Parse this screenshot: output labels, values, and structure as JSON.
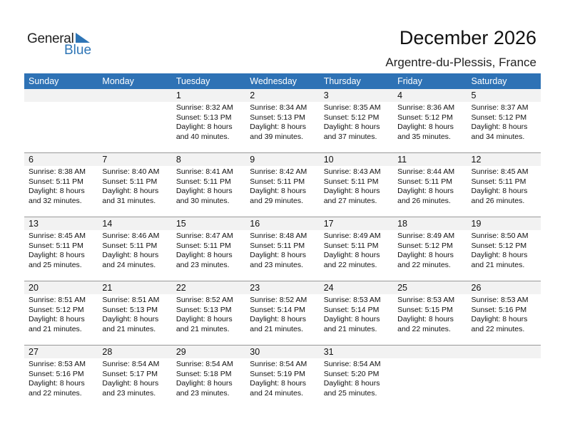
{
  "logo": {
    "word1": "General",
    "word2": "Blue"
  },
  "title": "December 2026",
  "location": "Argentre-du-Plessis, France",
  "colors": {
    "header": "#2e72b5",
    "brand": "#2e75b6",
    "date_bar": "#f2f2f2"
  },
  "weekdays": [
    "Sunday",
    "Monday",
    "Tuesday",
    "Wednesday",
    "Thursday",
    "Friday",
    "Saturday"
  ],
  "weeks": [
    [
      null,
      null,
      {
        "day": "1",
        "sunrise": "Sunrise: 8:32 AM",
        "sunset": "Sunset: 5:13 PM",
        "daylight": "Daylight: 8 hours",
        "minutes": "and 40 minutes."
      },
      {
        "day": "2",
        "sunrise": "Sunrise: 8:34 AM",
        "sunset": "Sunset: 5:13 PM",
        "daylight": "Daylight: 8 hours",
        "minutes": "and 39 minutes."
      },
      {
        "day": "3",
        "sunrise": "Sunrise: 8:35 AM",
        "sunset": "Sunset: 5:12 PM",
        "daylight": "Daylight: 8 hours",
        "minutes": "and 37 minutes."
      },
      {
        "day": "4",
        "sunrise": "Sunrise: 8:36 AM",
        "sunset": "Sunset: 5:12 PM",
        "daylight": "Daylight: 8 hours",
        "minutes": "and 35 minutes."
      },
      {
        "day": "5",
        "sunrise": "Sunrise: 8:37 AM",
        "sunset": "Sunset: 5:12 PM",
        "daylight": "Daylight: 8 hours",
        "minutes": "and 34 minutes."
      }
    ],
    [
      {
        "day": "6",
        "sunrise": "Sunrise: 8:38 AM",
        "sunset": "Sunset: 5:11 PM",
        "daylight": "Daylight: 8 hours",
        "minutes": "and 32 minutes."
      },
      {
        "day": "7",
        "sunrise": "Sunrise: 8:40 AM",
        "sunset": "Sunset: 5:11 PM",
        "daylight": "Daylight: 8 hours",
        "minutes": "and 31 minutes."
      },
      {
        "day": "8",
        "sunrise": "Sunrise: 8:41 AM",
        "sunset": "Sunset: 5:11 PM",
        "daylight": "Daylight: 8 hours",
        "minutes": "and 30 minutes."
      },
      {
        "day": "9",
        "sunrise": "Sunrise: 8:42 AM",
        "sunset": "Sunset: 5:11 PM",
        "daylight": "Daylight: 8 hours",
        "minutes": "and 29 minutes."
      },
      {
        "day": "10",
        "sunrise": "Sunrise: 8:43 AM",
        "sunset": "Sunset: 5:11 PM",
        "daylight": "Daylight: 8 hours",
        "minutes": "and 27 minutes."
      },
      {
        "day": "11",
        "sunrise": "Sunrise: 8:44 AM",
        "sunset": "Sunset: 5:11 PM",
        "daylight": "Daylight: 8 hours",
        "minutes": "and 26 minutes."
      },
      {
        "day": "12",
        "sunrise": "Sunrise: 8:45 AM",
        "sunset": "Sunset: 5:11 PM",
        "daylight": "Daylight: 8 hours",
        "minutes": "and 26 minutes."
      }
    ],
    [
      {
        "day": "13",
        "sunrise": "Sunrise: 8:45 AM",
        "sunset": "Sunset: 5:11 PM",
        "daylight": "Daylight: 8 hours",
        "minutes": "and 25 minutes."
      },
      {
        "day": "14",
        "sunrise": "Sunrise: 8:46 AM",
        "sunset": "Sunset: 5:11 PM",
        "daylight": "Daylight: 8 hours",
        "minutes": "and 24 minutes."
      },
      {
        "day": "15",
        "sunrise": "Sunrise: 8:47 AM",
        "sunset": "Sunset: 5:11 PM",
        "daylight": "Daylight: 8 hours",
        "minutes": "and 23 minutes."
      },
      {
        "day": "16",
        "sunrise": "Sunrise: 8:48 AM",
        "sunset": "Sunset: 5:11 PM",
        "daylight": "Daylight: 8 hours",
        "minutes": "and 23 minutes."
      },
      {
        "day": "17",
        "sunrise": "Sunrise: 8:49 AM",
        "sunset": "Sunset: 5:11 PM",
        "daylight": "Daylight: 8 hours",
        "minutes": "and 22 minutes."
      },
      {
        "day": "18",
        "sunrise": "Sunrise: 8:49 AM",
        "sunset": "Sunset: 5:12 PM",
        "daylight": "Daylight: 8 hours",
        "minutes": "and 22 minutes."
      },
      {
        "day": "19",
        "sunrise": "Sunrise: 8:50 AM",
        "sunset": "Sunset: 5:12 PM",
        "daylight": "Daylight: 8 hours",
        "minutes": "and 21 minutes."
      }
    ],
    [
      {
        "day": "20",
        "sunrise": "Sunrise: 8:51 AM",
        "sunset": "Sunset: 5:12 PM",
        "daylight": "Daylight: 8 hours",
        "minutes": "and 21 minutes."
      },
      {
        "day": "21",
        "sunrise": "Sunrise: 8:51 AM",
        "sunset": "Sunset: 5:13 PM",
        "daylight": "Daylight: 8 hours",
        "minutes": "and 21 minutes."
      },
      {
        "day": "22",
        "sunrise": "Sunrise: 8:52 AM",
        "sunset": "Sunset: 5:13 PM",
        "daylight": "Daylight: 8 hours",
        "minutes": "and 21 minutes."
      },
      {
        "day": "23",
        "sunrise": "Sunrise: 8:52 AM",
        "sunset": "Sunset: 5:14 PM",
        "daylight": "Daylight: 8 hours",
        "minutes": "and 21 minutes."
      },
      {
        "day": "24",
        "sunrise": "Sunrise: 8:53 AM",
        "sunset": "Sunset: 5:14 PM",
        "daylight": "Daylight: 8 hours",
        "minutes": "and 21 minutes."
      },
      {
        "day": "25",
        "sunrise": "Sunrise: 8:53 AM",
        "sunset": "Sunset: 5:15 PM",
        "daylight": "Daylight: 8 hours",
        "minutes": "and 22 minutes."
      },
      {
        "day": "26",
        "sunrise": "Sunrise: 8:53 AM",
        "sunset": "Sunset: 5:16 PM",
        "daylight": "Daylight: 8 hours",
        "minutes": "and 22 minutes."
      }
    ],
    [
      {
        "day": "27",
        "sunrise": "Sunrise: 8:53 AM",
        "sunset": "Sunset: 5:16 PM",
        "daylight": "Daylight: 8 hours",
        "minutes": "and 22 minutes."
      },
      {
        "day": "28",
        "sunrise": "Sunrise: 8:54 AM",
        "sunset": "Sunset: 5:17 PM",
        "daylight": "Daylight: 8 hours",
        "minutes": "and 23 minutes."
      },
      {
        "day": "29",
        "sunrise": "Sunrise: 8:54 AM",
        "sunset": "Sunset: 5:18 PM",
        "daylight": "Daylight: 8 hours",
        "minutes": "and 23 minutes."
      },
      {
        "day": "30",
        "sunrise": "Sunrise: 8:54 AM",
        "sunset": "Sunset: 5:19 PM",
        "daylight": "Daylight: 8 hours",
        "minutes": "and 24 minutes."
      },
      {
        "day": "31",
        "sunrise": "Sunrise: 8:54 AM",
        "sunset": "Sunset: 5:20 PM",
        "daylight": "Daylight: 8 hours",
        "minutes": "and 25 minutes."
      },
      null,
      null
    ]
  ]
}
